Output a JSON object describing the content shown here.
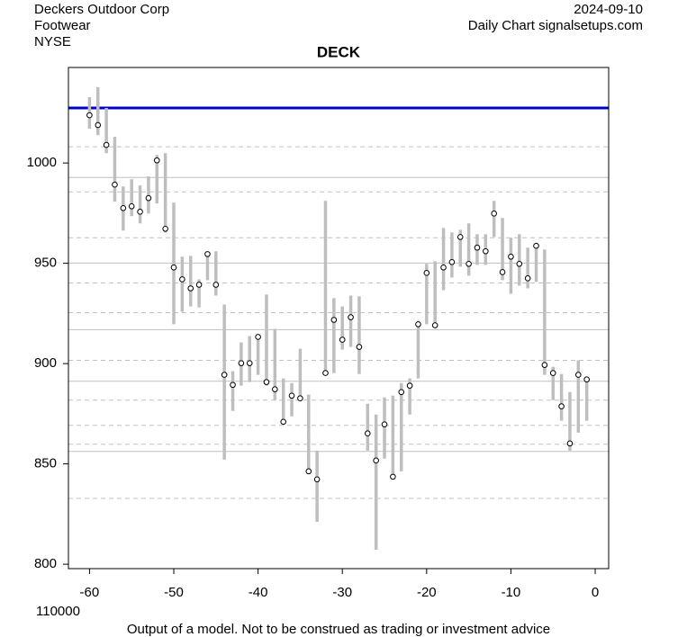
{
  "chart_data": {
    "type": "range",
    "title": "DECK",
    "company": "Deckers Outdoor Corp",
    "industry": "Footwear",
    "exchange": "NYSE",
    "date": "2024-09-10",
    "source": "Daily Chart signalsetups.com",
    "corner_note": "110000",
    "footer": "Output of a model. Not to be construed as trading or investment advice",
    "x": [
      -60,
      -59,
      -58,
      -57,
      -56,
      -55,
      -54,
      -53,
      -52,
      -51,
      -50,
      -49,
      -48,
      -47,
      -46,
      -45,
      -44,
      -43,
      -42,
      -41,
      -40,
      -39,
      -38,
      -37,
      -36,
      -35,
      -34,
      -33,
      -32,
      -31,
      -30,
      -29,
      -28,
      -27,
      -26,
      -25,
      -24,
      -23,
      -22,
      -21,
      -20,
      -19,
      -18,
      -17,
      -16,
      -15,
      -14,
      -13,
      -12,
      -11,
      -10,
      -9,
      -8,
      -7,
      -6,
      -5,
      -4,
      -3,
      -2,
      -1
    ],
    "values": [
      1023.8,
      1018.9,
      1009,
      989.2,
      977.5,
      978.4,
      975.7,
      982.5,
      1001.3,
      967.2,
      947.9,
      942,
      937.5,
      939.3,
      954.6,
      939.3,
      894.4,
      889.4,
      900.2,
      900.2,
      913.3,
      890.8,
      887.2,
      871,
      884,
      882.7,
      846.3,
      842.3,
      895.3,
      921.8,
      911.9,
      923.1,
      908.3,
      865.2,
      851.7,
      869.7,
      843.6,
      885.8,
      889,
      919.6,
      945.2,
      919.1,
      947.9,
      950.6,
      963.1,
      949.7,
      957.8,
      956,
      974.8,
      945.6,
      953.3,
      949.7,
      942.5,
      958.7,
      899.3,
      895.3,
      878.7,
      860.2,
      894.4,
      892.1
    ],
    "low": [
      1017.1,
      1013.9,
      1004.9,
      980.7,
      966.3,
      973.5,
      969.9,
      974.8,
      979.8,
      965.4,
      919.6,
      925.8,
      928.5,
      928,
      941.6,
      933.9,
      852.1,
      876.4,
      889,
      890.8,
      894.4,
      889,
      881.8,
      870.1,
      873.7,
      881.8,
      846.7,
      821.1,
      894.8,
      895.3,
      907,
      908.3,
      894.8,
      856.6,
      807.2,
      852.6,
      842.7,
      846.3,
      874.6,
      892.6,
      919.6,
      917.8,
      936.6,
      942.9,
      948.3,
      943.8,
      949.2,
      949.2,
      963.1,
      941.6,
      934.8,
      938.9,
      937.5,
      940.7,
      894.4,
      881.8,
      871.5,
      856.6,
      865.6,
      871.5
    ],
    "high": [
      1032.8,
      1037.8,
      1027.4,
      1013,
      988.3,
      991.9,
      988.8,
      993.3,
      1004,
      1004.9,
      980.2,
      953.3,
      953.7,
      942,
      955.5,
      956,
      929.4,
      896.2,
      910.6,
      913.7,
      914.6,
      934.4,
      917.3,
      892.6,
      890.3,
      907.4,
      884.5,
      856.6,
      981.1,
      932.6,
      928.5,
      933.9,
      933.5,
      880,
      874.6,
      883.1,
      884,
      890.3,
      892.6,
      921.3,
      949.7,
      951,
      967.6,
      965.4,
      966.7,
      969.9,
      964.5,
      964.5,
      981.1,
      972.6,
      962.7,
      964.5,
      957.8,
      959.6,
      956.9,
      898.4,
      894.8,
      885.8,
      901.6,
      892.6
    ],
    "range_color": "#bebebe",
    "point_color": "#000000",
    "level": 1027.4,
    "level_color": "#0000cc",
    "hlines": [
      {
        "value": 1008.1,
        "style": "dashed"
      },
      {
        "value": 992.8,
        "style": "solid"
      },
      {
        "value": 985.6,
        "style": "dashed"
      },
      {
        "value": 962.7,
        "style": "dashed"
      },
      {
        "value": 950.1,
        "style": "solid"
      },
      {
        "value": 940.2,
        "style": "dashed"
      },
      {
        "value": 925.4,
        "style": "dashed"
      },
      {
        "value": 916.9,
        "style": "solid"
      },
      {
        "value": 901.6,
        "style": "dashed"
      },
      {
        "value": 891.2,
        "style": "solid"
      },
      {
        "value": 881.8,
        "style": "dashed"
      },
      {
        "value": 869.2,
        "style": "dashed"
      },
      {
        "value": 859.8,
        "style": "dashed"
      },
      {
        "value": 856.2,
        "style": "solid"
      },
      {
        "value": 832.8,
        "style": "dashed"
      }
    ],
    "xlim": [
      -62.5,
      1.6
    ],
    "ylim": [
      797.8,
      1047.6
    ],
    "xticks": [
      -60,
      -50,
      -40,
      -30,
      -20,
      -10,
      0
    ],
    "yticks": [
      800,
      850,
      900,
      950,
      1000
    ]
  }
}
